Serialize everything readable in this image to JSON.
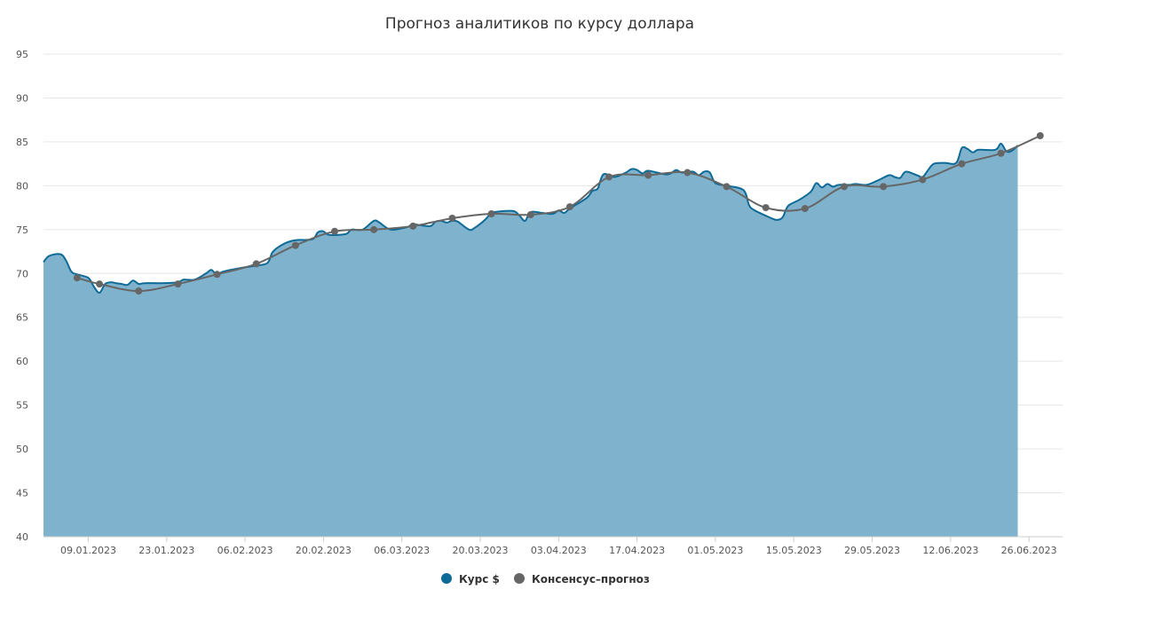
{
  "chart_data": {
    "type": "area",
    "title": "Прогноз аналитиков по курсу доллара",
    "xlabel": "",
    "ylabel": "",
    "ylim": [
      40,
      95
    ],
    "yticks": [
      40,
      45,
      50,
      55,
      60,
      65,
      70,
      75,
      80,
      85,
      90,
      95
    ],
    "x_range": [
      "2023-01-01",
      "2023-07-02"
    ],
    "x_ticks": [
      "09.01.2023",
      "23.01.2023",
      "06.02.2023",
      "20.02.2023",
      "06.03.2023",
      "20.03.2023",
      "03.04.2023",
      "17.04.2023",
      "01.05.2023",
      "15.05.2023",
      "29.05.2023",
      "12.06.2023",
      "26.06.2023"
    ],
    "grid": true,
    "legend_position": "bottom-center",
    "colors": {
      "rate": "#0e6a97",
      "rate_fill": "#7fb2cc",
      "forecast": "#666666",
      "grid": "#e6e6e6"
    },
    "series": [
      {
        "name": "Курс $",
        "kind": "area",
        "points": [
          [
            "2023-01-01",
            71.3
          ],
          [
            "2023-01-02",
            72.0
          ],
          [
            "2023-01-04",
            72.2
          ],
          [
            "2023-01-05",
            71.5
          ],
          [
            "2023-01-06",
            70.2
          ],
          [
            "2023-01-07",
            69.9
          ],
          [
            "2023-01-09",
            69.5
          ],
          [
            "2023-01-10",
            68.5
          ],
          [
            "2023-01-11",
            67.8
          ],
          [
            "2023-01-12",
            68.8
          ],
          [
            "2023-01-13",
            69.0
          ],
          [
            "2023-01-14",
            68.9
          ],
          [
            "2023-01-15",
            68.8
          ],
          [
            "2023-01-16",
            68.7
          ],
          [
            "2023-01-17",
            69.2
          ],
          [
            "2023-01-18",
            68.8
          ],
          [
            "2023-01-19",
            68.9
          ],
          [
            "2023-01-22",
            68.9
          ],
          [
            "2023-01-25",
            69.0
          ],
          [
            "2023-01-26",
            69.3
          ],
          [
            "2023-01-28",
            69.3
          ],
          [
            "2023-01-30",
            70.0
          ],
          [
            "2023-01-31",
            70.4
          ],
          [
            "2023-02-01",
            69.8
          ],
          [
            "2023-02-02",
            70.2
          ],
          [
            "2023-02-05",
            70.6
          ],
          [
            "2023-02-08",
            70.9
          ],
          [
            "2023-02-10",
            71.2
          ],
          [
            "2023-02-11",
            72.5
          ],
          [
            "2023-02-13",
            73.4
          ],
          [
            "2023-02-15",
            73.8
          ],
          [
            "2023-02-18",
            73.9
          ],
          [
            "2023-02-19",
            74.7
          ],
          [
            "2023-02-20",
            74.8
          ],
          [
            "2023-02-21",
            74.4
          ],
          [
            "2023-02-24",
            74.5
          ],
          [
            "2023-02-25",
            75.0
          ],
          [
            "2023-02-27",
            75.0
          ],
          [
            "2023-03-01",
            76.0
          ],
          [
            "2023-03-02",
            75.8
          ],
          [
            "2023-03-04",
            75.0
          ],
          [
            "2023-03-07",
            75.3
          ],
          [
            "2023-03-08",
            75.6
          ],
          [
            "2023-03-11",
            75.4
          ],
          [
            "2023-03-12",
            75.9
          ],
          [
            "2023-03-13",
            76.0
          ],
          [
            "2023-03-14",
            75.8
          ],
          [
            "2023-03-15",
            76.0
          ],
          [
            "2023-03-16",
            75.9
          ],
          [
            "2023-03-18",
            75.0
          ],
          [
            "2023-03-19",
            75.2
          ],
          [
            "2023-03-21",
            76.2
          ],
          [
            "2023-03-22",
            76.9
          ],
          [
            "2023-03-24",
            77.1
          ],
          [
            "2023-03-26",
            77.1
          ],
          [
            "2023-03-27",
            76.6
          ],
          [
            "2023-03-28",
            76.0
          ],
          [
            "2023-03-29",
            77.0
          ],
          [
            "2023-03-31",
            76.9
          ],
          [
            "2023-04-02",
            76.8
          ],
          [
            "2023-04-03",
            77.2
          ],
          [
            "2023-04-04",
            76.9
          ],
          [
            "2023-04-05",
            77.4
          ],
          [
            "2023-04-08",
            78.6
          ],
          [
            "2023-04-09",
            79.4
          ],
          [
            "2023-04-10",
            79.7
          ],
          [
            "2023-04-11",
            81.3
          ],
          [
            "2023-04-13",
            81.0
          ],
          [
            "2023-04-15",
            81.5
          ],
          [
            "2023-04-16",
            81.9
          ],
          [
            "2023-04-17",
            81.8
          ],
          [
            "2023-04-18",
            81.4
          ],
          [
            "2023-04-19",
            81.7
          ],
          [
            "2023-04-22",
            81.3
          ],
          [
            "2023-04-23",
            81.4
          ],
          [
            "2023-04-24",
            81.8
          ],
          [
            "2023-04-25",
            81.5
          ],
          [
            "2023-04-27",
            81.6
          ],
          [
            "2023-04-28",
            81.2
          ],
          [
            "2023-04-29",
            81.6
          ],
          [
            "2023-04-30",
            81.5
          ],
          [
            "2023-05-01",
            80.3
          ],
          [
            "2023-05-03",
            80.0
          ],
          [
            "2023-05-06",
            79.5
          ],
          [
            "2023-05-07",
            77.8
          ],
          [
            "2023-05-08",
            77.2
          ],
          [
            "2023-05-11",
            76.3
          ],
          [
            "2023-05-12",
            76.1
          ],
          [
            "2023-05-13",
            76.4
          ],
          [
            "2023-05-14",
            77.7
          ],
          [
            "2023-05-16",
            78.4
          ],
          [
            "2023-05-18",
            79.3
          ],
          [
            "2023-05-19",
            80.3
          ],
          [
            "2023-05-20",
            79.8
          ],
          [
            "2023-05-21",
            80.2
          ],
          [
            "2023-05-22",
            79.9
          ],
          [
            "2023-05-23",
            80.1
          ],
          [
            "2023-05-25",
            80.1
          ],
          [
            "2023-05-26",
            80.2
          ],
          [
            "2023-05-28",
            80.1
          ],
          [
            "2023-05-30",
            80.6
          ],
          [
            "2023-06-01",
            81.2
          ],
          [
            "2023-06-02",
            81.0
          ],
          [
            "2023-06-03",
            80.9
          ],
          [
            "2023-06-04",
            81.6
          ],
          [
            "2023-06-06",
            81.2
          ],
          [
            "2023-06-07",
            81.0
          ],
          [
            "2023-06-08",
            81.8
          ],
          [
            "2023-06-09",
            82.5
          ],
          [
            "2023-06-11",
            82.6
          ],
          [
            "2023-06-13",
            82.6
          ],
          [
            "2023-06-14",
            84.3
          ],
          [
            "2023-06-15",
            84.2
          ],
          [
            "2023-06-16",
            83.8
          ],
          [
            "2023-06-17",
            84.1
          ],
          [
            "2023-06-20",
            84.1
          ],
          [
            "2023-06-21",
            84.8
          ],
          [
            "2023-06-22",
            83.9
          ],
          [
            "2023-06-23",
            84.0
          ],
          [
            "2023-06-24",
            84.6
          ]
        ]
      },
      {
        "name": "Консенсус–прогноз",
        "kind": "line",
        "points": [
          [
            "2023-01-07",
            69.5
          ],
          [
            "2023-01-11",
            68.8
          ],
          [
            "2023-01-18",
            68.0
          ],
          [
            "2023-01-25",
            68.8
          ],
          [
            "2023-02-01",
            69.9
          ],
          [
            "2023-02-08",
            71.1
          ],
          [
            "2023-02-15",
            73.2
          ],
          [
            "2023-02-22",
            74.8
          ],
          [
            "2023-03-01",
            75.0
          ],
          [
            "2023-03-08",
            75.4
          ],
          [
            "2023-03-15",
            76.3
          ],
          [
            "2023-03-22",
            76.8
          ],
          [
            "2023-03-29",
            76.7
          ],
          [
            "2023-04-05",
            77.6
          ],
          [
            "2023-04-12",
            81.0
          ],
          [
            "2023-04-19",
            81.2
          ],
          [
            "2023-04-26",
            81.5
          ],
          [
            "2023-05-03",
            79.9
          ],
          [
            "2023-05-10",
            77.5
          ],
          [
            "2023-05-17",
            77.4
          ],
          [
            "2023-05-24",
            79.9
          ],
          [
            "2023-05-31",
            79.9
          ],
          [
            "2023-06-07",
            80.7
          ],
          [
            "2023-06-14",
            82.5
          ],
          [
            "2023-06-21",
            83.7
          ],
          [
            "2023-06-28",
            85.7
          ]
        ]
      }
    ]
  }
}
